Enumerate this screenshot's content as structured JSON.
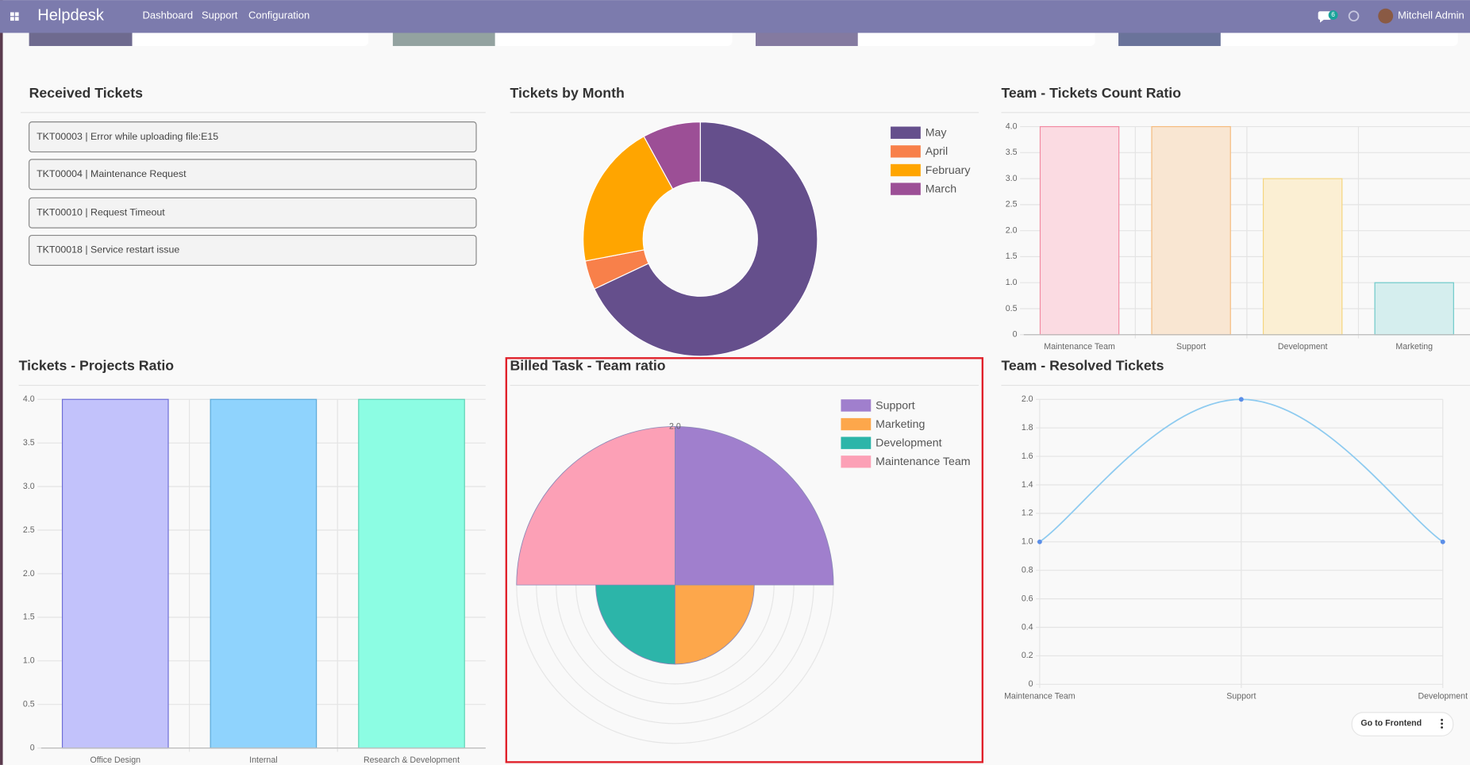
{
  "nav": {
    "app": "Helpdesk",
    "menu": [
      "Dashboard",
      "Support",
      "Configuration"
    ],
    "message_count": 6,
    "user": "Mitchell Admin"
  },
  "received_tickets": {
    "title": "Received Tickets",
    "items": [
      "TKT00003 | Error while uploading file:E15",
      "TKT00004 | Maintenance Request",
      "TKT00010 | Request Timeout",
      "TKT00018 | Service restart issue"
    ]
  },
  "chart_data": [
    {
      "type": "doughnut",
      "title": "Tickets by Month",
      "categories": [
        "May",
        "April",
        "February",
        "March"
      ],
      "values": [
        17,
        1,
        5,
        2
      ],
      "colors": [
        "#654f8c",
        "#f8804a",
        "#ffa500",
        "#9c4f96"
      ],
      "legend": "top-right"
    },
    {
      "type": "bar",
      "title": "Team - Tickets Count Ratio",
      "categories": [
        "Maintenance Team",
        "Support",
        "Development",
        "Marketing"
      ],
      "values": [
        4,
        4,
        3,
        1
      ],
      "colors": [
        "#fbdbe2",
        "#f9e6d2",
        "#fbefd3",
        "#d5eeee"
      ],
      "border_colors": [
        "#f28aa2",
        "#f5bb7d",
        "#f5d57f",
        "#6ecaca"
      ],
      "ylim": [
        0,
        4
      ],
      "yticks": [
        0,
        0.5,
        {
          "value": 1,
          "label": "1.0"
        },
        1.5,
        {
          "value": 2,
          "label": "2.0"
        },
        2.5,
        {
          "value": 3,
          "label": "3.0"
        },
        3.5,
        {
          "value": 4,
          "label": "4.0"
        }
      ],
      "grid": true
    },
    {
      "type": "bar",
      "title": "Tickets - Projects Ratio",
      "categories": [
        "Office Design",
        "Internal",
        "Research & Development"
      ],
      "values": [
        4,
        4,
        4
      ],
      "colors": [
        "#c2c2fb",
        "#8fd3fd",
        "#8cfde3"
      ],
      "border_colors": [
        "#6d6dd6",
        "#5aa9d8",
        "#5fd1b6"
      ],
      "ylim": [
        0,
        4
      ],
      "yticks": [
        0,
        0.5,
        {
          "value": 1,
          "label": "1.0"
        },
        1.5,
        {
          "value": 2,
          "label": "2.0"
        },
        2.5,
        {
          "value": 3,
          "label": "3.0"
        },
        3.5,
        {
          "value": 4,
          "label": "4.0"
        }
      ],
      "grid": true
    },
    {
      "type": "polarArea",
      "title": "Billed Task - Team ratio",
      "categories": [
        "Support",
        "Marketing",
        "Development",
        "Maintenance Team"
      ],
      "values": [
        2,
        1,
        1,
        2
      ],
      "colors": [
        "#a07fcd",
        "#fda74b",
        "#2cb5a9",
        "#fca0b6"
      ],
      "rlim": [
        0,
        2
      ],
      "rticks": [
        {
          "value": 0.25,
          "label": null
        },
        {
          "value": 0.5,
          "label": null
        },
        {
          "value": 0.75,
          "label": null
        },
        {
          "value": 1,
          "label": null
        },
        {
          "value": 1.25,
          "label": null
        },
        {
          "value": 1.5,
          "label": null
        },
        {
          "value": 1.75,
          "label": null
        },
        {
          "value": 2,
          "label": "2.0"
        }
      ],
      "legend": "top-right"
    },
    {
      "type": "line",
      "title": "Team - Resolved Tickets",
      "categories": [
        "Maintenance Team",
        "Support",
        "Development"
      ],
      "values": [
        1,
        2,
        1
      ],
      "color": "#8ecbf0",
      "point_color": "#5b8ee8",
      "ylim": [
        0,
        2
      ],
      "yticks": [
        0,
        0.2,
        0.4,
        0.6,
        0.8,
        {
          "value": 1,
          "label": "1.0"
        },
        1.2,
        1.4,
        1.6,
        1.8,
        {
          "value": 2,
          "label": "2.0"
        }
      ],
      "grid": true
    }
  ],
  "footer_button": "Go to Frontend"
}
